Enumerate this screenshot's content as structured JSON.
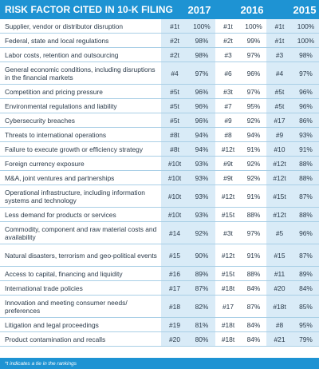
{
  "header": {
    "title": "RISK FACTOR CITED IN 10-K FILING",
    "years": [
      "2017",
      "2016",
      "2015"
    ]
  },
  "rows": [
    {
      "factor": "Supplier, vendor or distributor disruption",
      "r2017": "#1t",
      "p2017": "100%",
      "r2016": "#1t",
      "p2016": "100%",
      "r2015": "#1t",
      "p2015": "100%"
    },
    {
      "factor": "Federal, state and local regulations",
      "r2017": "#2t",
      "p2017": "98%",
      "r2016": "#2t",
      "p2016": "99%",
      "r2015": "#1t",
      "p2015": "100%"
    },
    {
      "factor": "Labor costs, retention and outsourcing",
      "r2017": "#2t",
      "p2017": "98%",
      "r2016": "#3",
      "p2016": "97%",
      "r2015": "#3",
      "p2015": "98%"
    },
    {
      "factor": "General economic conditions, including disruptions in the financial markets",
      "r2017": "#4",
      "p2017": "97%",
      "r2016": "#6",
      "p2016": "96%",
      "r2015": "#4",
      "p2015": "97%"
    },
    {
      "factor": "Competition and pricing pressure",
      "r2017": "#5t",
      "p2017": "96%",
      "r2016": "#3t",
      "p2016": "97%",
      "r2015": "#5t",
      "p2015": "96%"
    },
    {
      "factor": "Environmental regulations and liability",
      "r2017": "#5t",
      "p2017": "96%",
      "r2016": "#7",
      "p2016": "95%",
      "r2015": "#5t",
      "p2015": "96%"
    },
    {
      "factor": "Cybersecurity breaches",
      "r2017": "#5t",
      "p2017": "96%",
      "r2016": "#9",
      "p2016": "92%",
      "r2015": "#17",
      "p2015": "86%"
    },
    {
      "factor": "Threats to international operations",
      "r2017": "#8t",
      "p2017": "94%",
      "r2016": "#8",
      "p2016": "94%",
      "r2015": "#9",
      "p2015": "93%"
    },
    {
      "factor": "Failure to execute growth or efficiency strategy",
      "r2017": "#8t",
      "p2017": "94%",
      "r2016": "#12t",
      "p2016": "91%",
      "r2015": "#10",
      "p2015": "91%"
    },
    {
      "factor": "Foreign currency exposure",
      "r2017": "#10t",
      "p2017": "93%",
      "r2016": "#9t",
      "p2016": "92%",
      "r2015": "#12t",
      "p2015": "88%"
    },
    {
      "factor": "M&A, joint ventures and partnerships",
      "r2017": "#10t",
      "p2017": "93%",
      "r2016": "#9t",
      "p2016": "92%",
      "r2015": "#12t",
      "p2015": "88%"
    },
    {
      "factor": "Operational infrastructure, including information systems and technology",
      "r2017": "#10t",
      "p2017": "93%",
      "r2016": "#12t",
      "p2016": "91%",
      "r2015": "#15t",
      "p2015": "87%"
    },
    {
      "factor": "Less demand for products or services",
      "r2017": "#10t",
      "p2017": "93%",
      "r2016": "#15t",
      "p2016": "88%",
      "r2015": "#12t",
      "p2015": "88%"
    },
    {
      "factor": "Commodity, component and raw material costs  and availability",
      "r2017": "#14",
      "p2017": "92%",
      "r2016": "#3t",
      "p2016": "97%",
      "r2015": "#5",
      "p2015": "96%"
    },
    {
      "factor": "Natural disasters, terrorism and geo-political events",
      "r2017": "#15",
      "p2017": "90%",
      "r2016": "#12t",
      "p2016": "91%",
      "r2015": "#15",
      "p2015": "87%"
    },
    {
      "factor": "Access to capital, financing and liquidity",
      "r2017": "#16",
      "p2017": "89%",
      "r2016": "#15t",
      "p2016": "88%",
      "r2015": "#11",
      "p2015": "89%"
    },
    {
      "factor": "International trade policies",
      "r2017": "#17",
      "p2017": "87%",
      "r2016": "#18t",
      "p2016": "84%",
      "r2015": "#20",
      "p2015": "84%"
    },
    {
      "factor": "Innovation and meeting consumer needs/ preferences",
      "r2017": "#18",
      "p2017": "82%",
      "r2016": "#17",
      "p2016": "87%",
      "r2015": "#18t",
      "p2015": "85%"
    },
    {
      "factor": "Litigation and legal proceedings",
      "r2017": "#19",
      "p2017": "81%",
      "r2016": "#18t",
      "p2016": "84%",
      "r2015": "#8",
      "p2015": "95%"
    },
    {
      "factor": "Product contamination and recalls",
      "r2017": "#20",
      "p2017": "80%",
      "r2016": "#18t",
      "p2016": "84%",
      "r2015": "#21",
      "p2015": "79%"
    }
  ],
  "footer": {
    "note": "*t indicates a tie in the rankings"
  },
  "colors": {
    "header_bg": "#1e93d3",
    "shaded_column": "#d9ebf7",
    "text": "#2a3a4a"
  }
}
